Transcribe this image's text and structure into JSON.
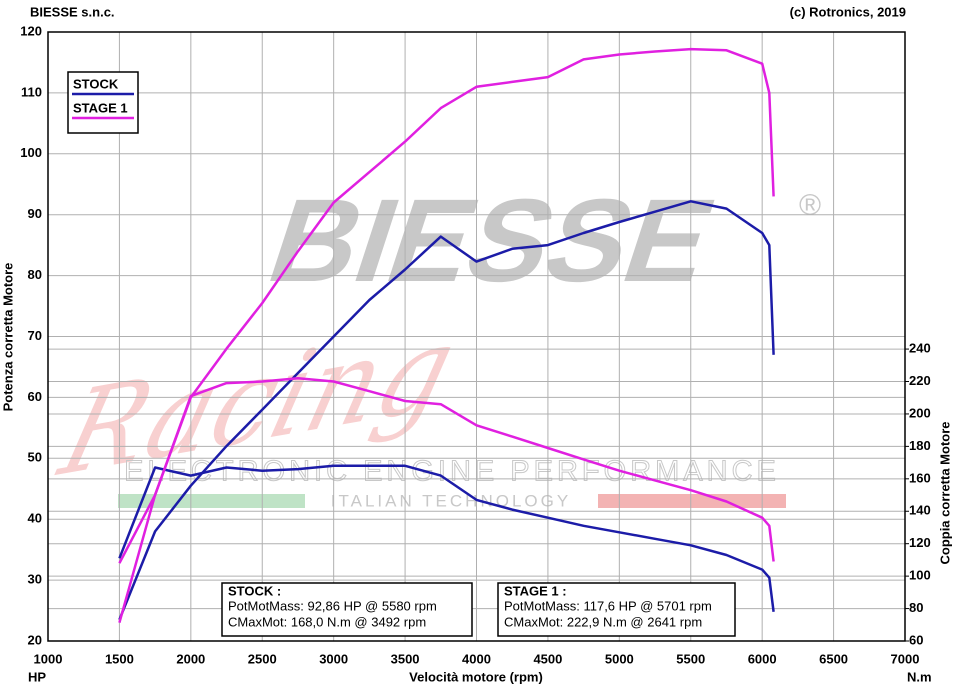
{
  "chart_data": {
    "type": "line",
    "header_left": "BIESSE s.n.c.",
    "header_right": "(c) Rotronics, 2019",
    "ylabel": "Potenza corretta Motore",
    "y2label": "Coppia corretta Motore",
    "xlabel": "Velocità motore (rpm)",
    "y_unit": "HP",
    "y2_unit": "N.m",
    "x": [
      1500,
      1750,
      2000,
      2250,
      2500,
      2750,
      3000,
      3250,
      3500,
      3750,
      4000,
      4250,
      4500,
      4750,
      5000,
      5250,
      5500,
      5750,
      6000,
      6050,
      6080
    ],
    "series": [
      {
        "name": "STOCK",
        "color": "#1c1ca8",
        "values": [
          23.5,
          38,
          45.5,
          52,
          58,
          64,
          70,
          76,
          81,
          86.4,
          82.3,
          84.4,
          85,
          87,
          88.8,
          90.5,
          92.2,
          91,
          87,
          85,
          67
        ],
        "y2_values": [
          111,
          167,
          162,
          167,
          165,
          166,
          168,
          168,
          168,
          162,
          147,
          141,
          136,
          131,
          127,
          123,
          119,
          113,
          104,
          99,
          78
        ]
      },
      {
        "name": "STAGE 1",
        "color": "#e020e0",
        "values": [
          23,
          44,
          60,
          68,
          75.5,
          84,
          92,
          97,
          102,
          107.5,
          111,
          111.8,
          112.6,
          115.5,
          116.3,
          116.8,
          117.2,
          117,
          114.8,
          110,
          93
        ],
        "y2_values": [
          108,
          150,
          211,
          219,
          220,
          222,
          220,
          214,
          208,
          206,
          193,
          186,
          179,
          172,
          165,
          159,
          153,
          146,
          136,
          131,
          109
        ]
      }
    ],
    "xlim": [
      1000,
      7000
    ],
    "xticks": [
      1000,
      1500,
      2000,
      2500,
      3000,
      3500,
      4000,
      4500,
      5000,
      5500,
      6000,
      6500,
      7000
    ],
    "ylim": [
      20,
      120
    ],
    "yticks": [
      20,
      30,
      40,
      50,
      60,
      70,
      80,
      90,
      100,
      110,
      120
    ],
    "y2lim": [
      60,
      435.5
    ],
    "y2ticks": [
      60,
      80,
      100,
      120,
      140,
      160,
      180,
      200,
      220,
      240
    ],
    "grid": true,
    "legend": "upper left",
    "info_boxes": [
      {
        "title": "STOCK :",
        "lines": [
          "PotMotMass: 92,86 HP @ 5580 rpm",
          "CMaxMot: 168,0 N.m @ 3492 rpm"
        ]
      },
      {
        "title": "STAGE 1 :",
        "lines": [
          "PotMotMass: 117,6 HP @ 5701 rpm",
          "CMaxMot: 222,9 N.m @ 2641 rpm"
        ]
      }
    ],
    "watermark": {
      "brand": "BIESSE",
      "registered": "®",
      "script": "Racing",
      "tagline": "ELECTRONIC ENGINE PERFORMANCE",
      "origin": "ITALIAN TECHNOLOGY"
    }
  }
}
